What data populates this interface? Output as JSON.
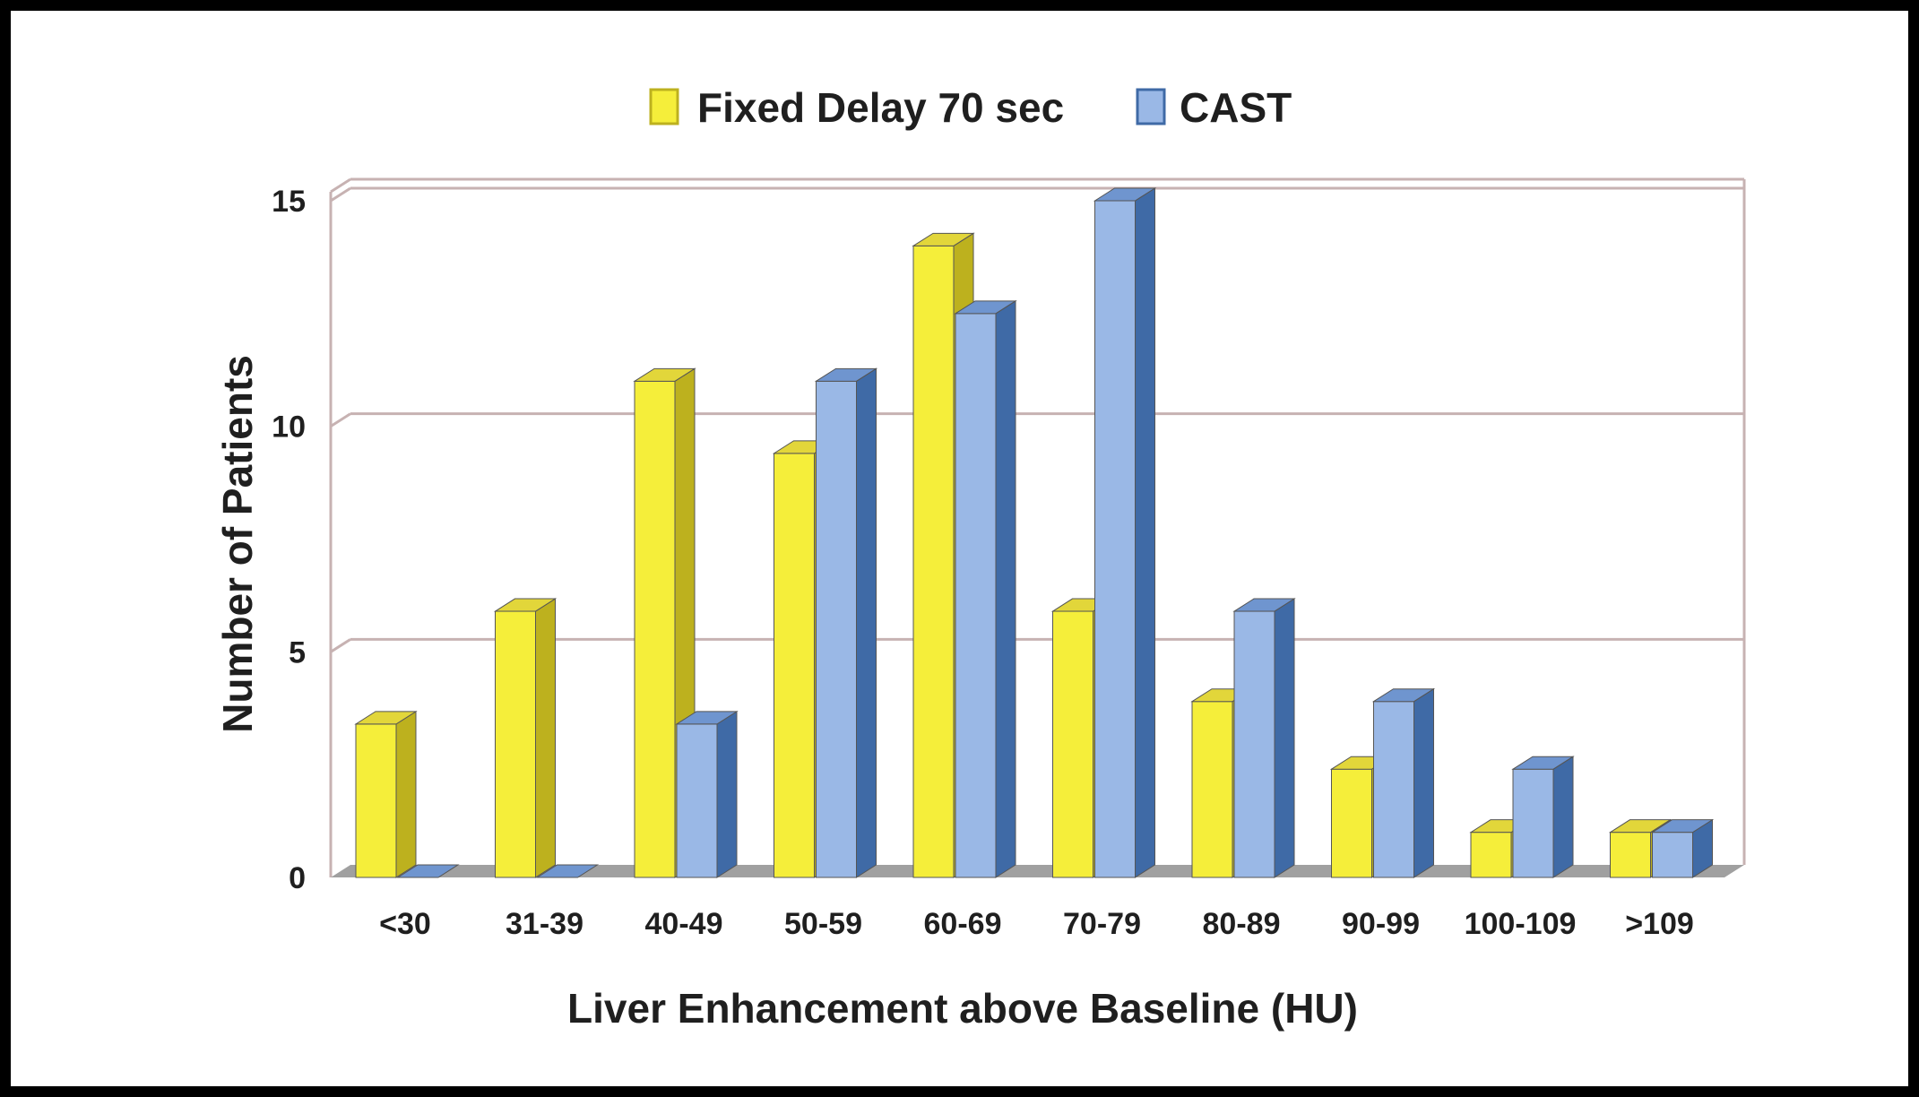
{
  "chart_data": {
    "type": "bar",
    "categories": [
      "<30",
      "31-39",
      "40-49",
      "50-59",
      "60-69",
      "70-79",
      "80-89",
      "90-99",
      "100-109",
      ">109"
    ],
    "series": [
      {
        "name": "Fixed Delay 70 sec",
        "values": [
          3.4,
          5.9,
          11,
          9.4,
          14,
          5.9,
          3.9,
          2.4,
          1,
          1
        ]
      },
      {
        "name": "CAST",
        "values": [
          0,
          0,
          3.4,
          11,
          12.5,
          15,
          5.9,
          3.9,
          2.4,
          1
        ]
      }
    ],
    "title": "",
    "xlabel": "Liver Enhancement above Baseline (HU)",
    "ylabel": "Number of Patients",
    "ylim": [
      0,
      15
    ],
    "yticks": [
      "0",
      "5",
      "10",
      "15"
    ],
    "grid": true,
    "legend_position": "top-center",
    "colors": {
      "series0_front": "#f5ee3a",
      "series0_side": "#bdb11e",
      "series0_top": "#e2d63a",
      "series1_front": "#9ab8e6",
      "series1_side": "#3f6aa6",
      "series1_top": "#6f95cf",
      "gridline": "#c7b2b2",
      "floor": "#a0a0a0"
    }
  }
}
